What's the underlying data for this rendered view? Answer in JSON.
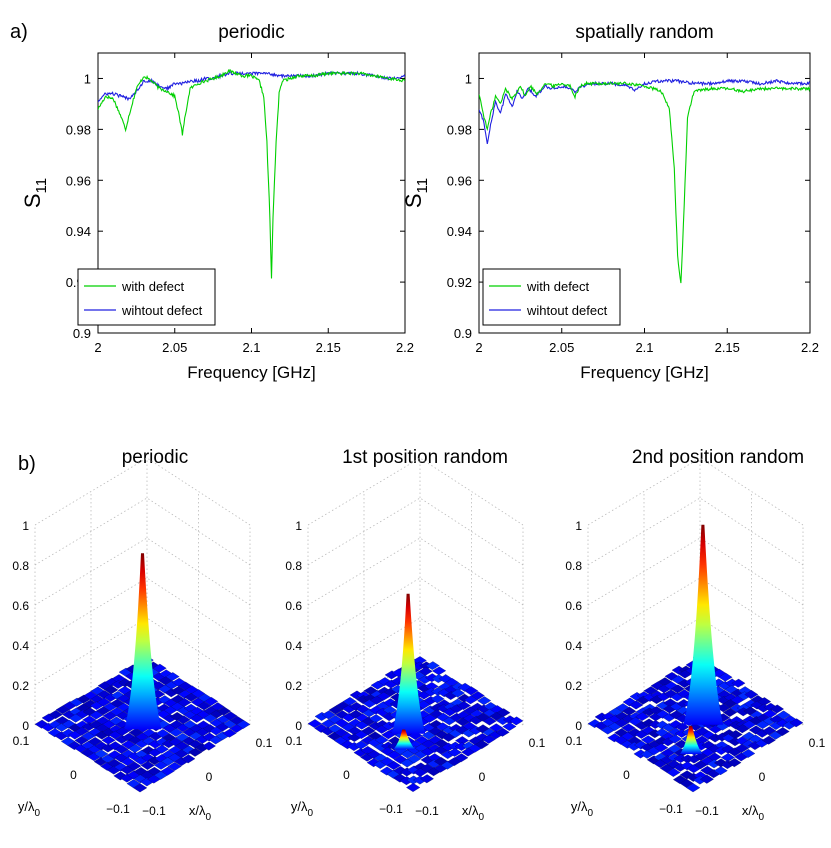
{
  "panel_labels": {
    "a": "a)",
    "b": "b)"
  },
  "chart_data": [
    {
      "type": "line",
      "title": "periodic",
      "xlabel": "Frequency [GHz]",
      "ylabel": "S11",
      "xlim": [
        2,
        2.2
      ],
      "ylim": [
        0.9,
        1.01
      ],
      "x_ticks": [
        "2",
        "2.05",
        "2.1",
        "2.15",
        "2.2"
      ],
      "y_ticks": [
        "0.9",
        "0.92",
        "0.94",
        "0.96",
        "0.98",
        "1"
      ],
      "legend_position": "bottom-left",
      "legend": [
        "with defect",
        "wihtout defect"
      ],
      "series": [
        {
          "name": "with defect",
          "color": "#00d000",
          "x": [
            2.0,
            2.005,
            2.01,
            2.015,
            2.018,
            2.02,
            2.025,
            2.03,
            2.035,
            2.04,
            2.045,
            2.05,
            2.053,
            2.055,
            2.057,
            2.06,
            2.065,
            2.07,
            2.075,
            2.08,
            2.085,
            2.09,
            2.095,
            2.1,
            2.105,
            2.108,
            2.11,
            2.112,
            2.113,
            2.114,
            2.116,
            2.118,
            2.12,
            2.125,
            2.13,
            2.14,
            2.15,
            2.16,
            2.17,
            2.18,
            2.19,
            2.2
          ],
          "y": [
            0.988,
            0.993,
            0.992,
            0.985,
            0.98,
            0.985,
            0.996,
            1.001,
            0.999,
            0.996,
            0.995,
            0.993,
            0.985,
            0.978,
            0.986,
            0.996,
            0.998,
            0.999,
            1.0,
            1.001,
            1.003,
            1.002,
            1.001,
            1.001,
            0.999,
            0.993,
            0.975,
            0.945,
            0.921,
            0.945,
            0.975,
            0.994,
            0.999,
            1.0,
            1.001,
            1.001,
            1.002,
            1.002,
            1.002,
            1.001,
            1.0,
            0.999
          ]
        },
        {
          "name": "wihtout defect",
          "color": "#2020e0",
          "x": [
            2.0,
            2.005,
            2.01,
            2.015,
            2.02,
            2.025,
            2.03,
            2.035,
            2.04,
            2.045,
            2.05,
            2.055,
            2.06,
            2.065,
            2.07,
            2.075,
            2.08,
            2.085,
            2.09,
            2.1,
            2.11,
            2.12,
            2.13,
            2.14,
            2.15,
            2.16,
            2.17,
            2.18,
            2.19,
            2.2
          ],
          "y": [
            0.991,
            0.994,
            0.994,
            0.993,
            0.992,
            0.995,
            0.999,
            0.999,
            0.997,
            0.996,
            0.998,
            0.998,
            0.999,
            0.999,
            1.0,
            1.0,
            1.001,
            1.002,
            1.002,
            1.002,
            1.002,
            1.001,
            1.001,
            1.001,
            1.002,
            1.002,
            1.002,
            1.001,
            1.0,
            1.001
          ]
        }
      ]
    },
    {
      "type": "line",
      "title": "spatially random",
      "xlabel": "Frequency [GHz]",
      "ylabel": "S11",
      "xlim": [
        2,
        2.2
      ],
      "ylim": [
        0.9,
        1.01
      ],
      "x_ticks": [
        "2",
        "2.05",
        "2.1",
        "2.15",
        "2.2"
      ],
      "y_ticks": [
        "0.9",
        "0.92",
        "0.94",
        "0.96",
        "0.98",
        "1"
      ],
      "legend_position": "bottom-left",
      "legend": [
        "with defect",
        "wihtout defect"
      ],
      "series": [
        {
          "name": "with defect",
          "color": "#00d000",
          "x": [
            2.0,
            2.003,
            2.005,
            2.007,
            2.01,
            2.013,
            2.016,
            2.02,
            2.025,
            2.028,
            2.031,
            2.035,
            2.04,
            2.045,
            2.05,
            2.055,
            2.058,
            2.061,
            2.065,
            2.07,
            2.08,
            2.09,
            2.1,
            2.11,
            2.115,
            2.118,
            2.12,
            2.122,
            2.124,
            2.126,
            2.13,
            2.14,
            2.15,
            2.16,
            2.17,
            2.18,
            2.19,
            2.2
          ],
          "y": [
            0.994,
            0.985,
            0.98,
            0.986,
            0.993,
            0.99,
            0.996,
            0.992,
            0.997,
            0.993,
            0.997,
            0.994,
            0.998,
            0.997,
            0.998,
            0.997,
            0.993,
            0.997,
            0.998,
            0.998,
            0.998,
            0.998,
            0.997,
            0.995,
            0.988,
            0.965,
            0.93,
            0.919,
            0.95,
            0.985,
            0.995,
            0.996,
            0.996,
            0.995,
            0.996,
            0.996,
            0.996,
            0.996
          ]
        },
        {
          "name": "wihtout defect",
          "color": "#2020e0",
          "x": [
            2.0,
            2.003,
            2.005,
            2.007,
            2.01,
            2.013,
            2.016,
            2.02,
            2.023,
            2.026,
            2.03,
            2.034,
            2.04,
            2.045,
            2.05,
            2.055,
            2.058,
            2.062,
            2.07,
            2.08,
            2.09,
            2.094,
            2.1,
            2.11,
            2.12,
            2.13,
            2.14,
            2.15,
            2.16,
            2.17,
            2.18,
            2.19,
            2.2
          ],
          "y": [
            0.988,
            0.983,
            0.974,
            0.982,
            0.991,
            0.986,
            0.994,
            0.989,
            0.995,
            0.992,
            0.996,
            0.993,
            0.997,
            0.996,
            0.997,
            0.996,
            0.995,
            0.997,
            0.998,
            0.998,
            0.997,
            0.995,
            0.998,
            0.999,
            0.999,
            0.998,
            0.998,
            0.999,
            0.999,
            0.998,
            0.999,
            0.998,
            0.998
          ]
        }
      ]
    },
    {
      "type": "surface",
      "title": "periodic",
      "z_ticks": [
        "0",
        "0.2",
        "0.4",
        "0.6",
        "0.8",
        "1"
      ],
      "zlim": [
        0,
        1
      ],
      "x_ticks": [
        "−0.1",
        "0",
        "0.1"
      ],
      "y_ticks": [
        "0.1",
        "0",
        "−0.1"
      ],
      "xlabel": "x/λ0",
      "ylabel": "y/λ0",
      "peaks": [
        {
          "x": 0.0,
          "y": 0.0,
          "z": 0.86
        }
      ],
      "noise_level": 0.03
    },
    {
      "type": "surface",
      "title": "1st position random",
      "z_ticks": [
        "0",
        "0.2",
        "0.4",
        "0.6",
        "0.8",
        "1"
      ],
      "zlim": [
        0,
        1
      ],
      "x_ticks": [
        "−0.1",
        "0",
        "0.1"
      ],
      "y_ticks": [
        "0.1",
        "0",
        "−0.1"
      ],
      "xlabel": "x/λ0",
      "ylabel": "y/λ0",
      "peaks": [
        {
          "x": 0.0,
          "y": -0.02,
          "z": 0.68
        },
        {
          "x": 0.03,
          "y": -0.06,
          "z": 0.08
        }
      ],
      "noise_level": 0.05
    },
    {
      "type": "surface",
      "title": "2nd position random",
      "z_ticks": [
        "0",
        "0.2",
        "0.4",
        "0.6",
        "0.8",
        "1"
      ],
      "zlim": [
        0,
        1
      ],
      "x_ticks": [
        "−0.1",
        "0",
        "0.1"
      ],
      "y_ticks": [
        "0.1",
        "0",
        "−0.1"
      ],
      "xlabel": "x/λ0",
      "ylabel": "y/λ0",
      "peaks": [
        {
          "x": 0.0,
          "y": 0.02,
          "z": 0.98
        },
        {
          "x": 0.05,
          "y": -0.06,
          "z": 0.12
        }
      ],
      "noise_level": 0.05
    }
  ]
}
